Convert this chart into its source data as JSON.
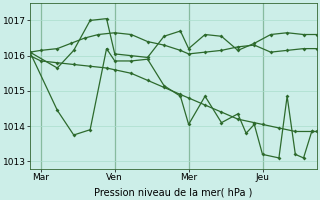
{
  "background_color": "#cceee8",
  "grid_color": "#aaddcc",
  "line_color": "#2d6a2d",
  "xlabel": "Pression niveau de la mer( hPa )",
  "ylim": [
    1012.8,
    1017.5
  ],
  "yticks": [
    1013,
    1014,
    1015,
    1016,
    1017
  ],
  "xtick_labels": [
    "Mar",
    "Ven",
    "Mer",
    "Jeu"
  ],
  "xtick_positions": [
    18,
    72,
    126,
    180
  ],
  "xlim": [
    10,
    220
  ],
  "vline_positions": [
    18,
    72,
    126,
    180
  ],
  "series1_x": [
    10,
    18,
    30,
    40,
    50,
    60,
    72,
    84,
    96,
    108,
    120,
    126,
    138,
    150,
    162,
    174,
    186,
    198,
    210,
    220
  ],
  "series1_y": [
    1016.1,
    1016.15,
    1016.2,
    1016.35,
    1016.5,
    1016.6,
    1016.65,
    1016.6,
    1016.4,
    1016.3,
    1016.15,
    1016.05,
    1016.1,
    1016.15,
    1016.25,
    1016.3,
    1016.1,
    1016.15,
    1016.2,
    1016.2
  ],
  "series2_x": [
    10,
    18,
    30,
    42,
    54,
    66,
    72,
    84,
    96,
    108,
    120,
    126,
    138,
    150,
    162,
    174,
    180,
    192,
    204,
    216,
    220
  ],
  "series2_y": [
    1016.0,
    1015.85,
    1015.8,
    1015.75,
    1015.7,
    1015.65,
    1015.6,
    1015.5,
    1015.3,
    1015.1,
    1014.9,
    1014.8,
    1014.6,
    1014.4,
    1014.2,
    1014.1,
    1014.05,
    1013.95,
    1013.85,
    1013.85,
    1013.85
  ],
  "series3_x": [
    10,
    30,
    42,
    54,
    66,
    72,
    84,
    96,
    108,
    120,
    126,
    138,
    150,
    162,
    174,
    186,
    198,
    210,
    220
  ],
  "series3_y": [
    1016.1,
    1015.65,
    1016.15,
    1017.0,
    1017.05,
    1016.05,
    1016.0,
    1015.95,
    1016.55,
    1016.7,
    1016.2,
    1016.6,
    1016.55,
    1016.15,
    1016.35,
    1016.6,
    1016.65,
    1016.6,
    1016.6
  ],
  "series4_x": [
    10,
    30,
    42,
    54,
    66,
    72,
    84,
    96,
    108,
    120,
    126,
    138,
    150,
    162,
    168,
    174,
    180,
    192,
    198,
    204,
    210,
    216,
    220
  ],
  "series4_y": [
    1016.1,
    1014.45,
    1013.75,
    1013.9,
    1016.2,
    1015.85,
    1015.85,
    1015.9,
    1015.15,
    1014.85,
    1014.05,
    1014.85,
    1014.1,
    1014.35,
    1013.8,
    1014.05,
    1013.2,
    1013.1,
    1014.85,
    1013.2,
    1013.1,
    1013.85,
    1013.85
  ]
}
